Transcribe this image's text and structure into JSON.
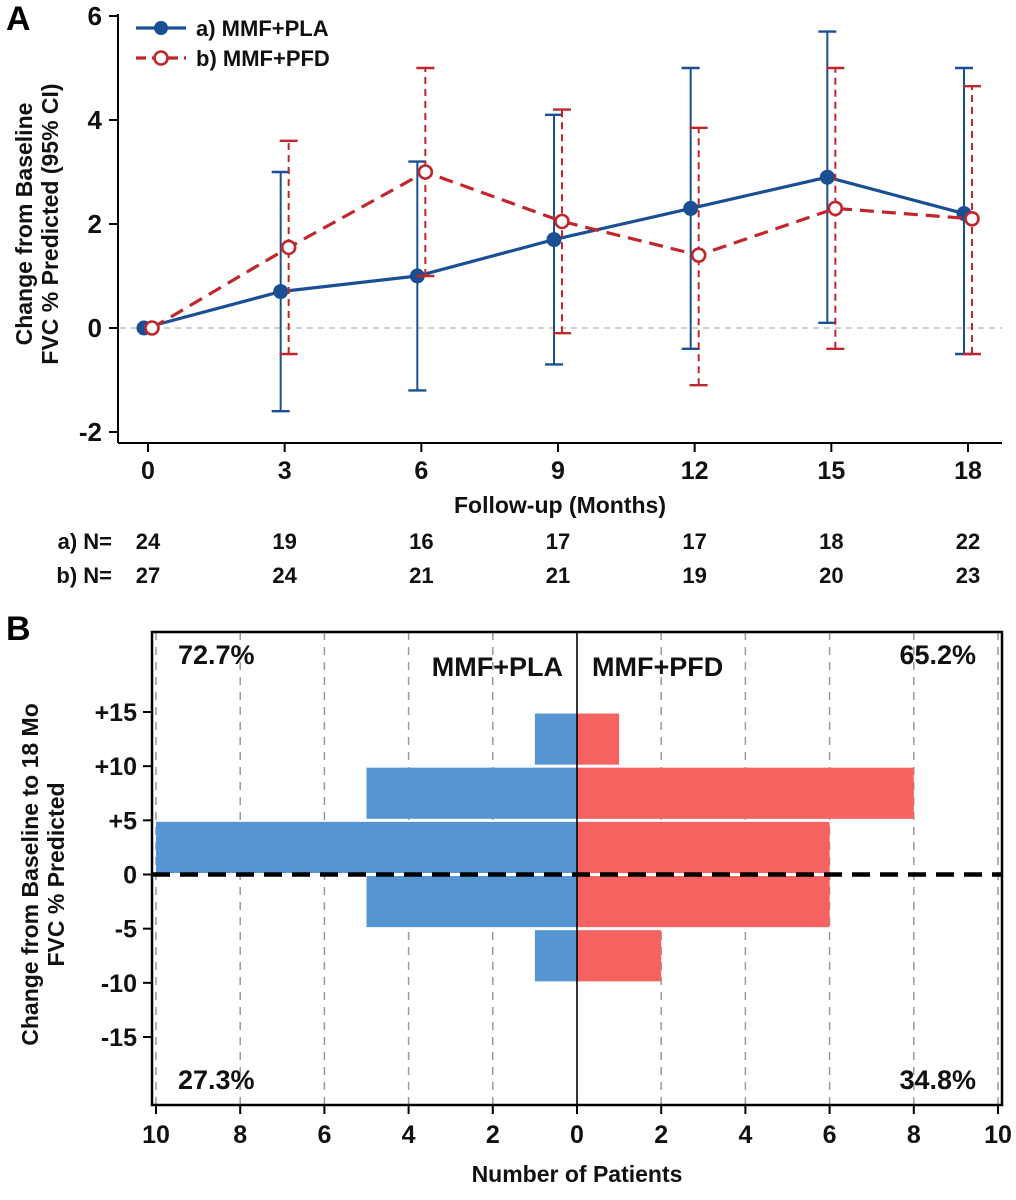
{
  "panel_a": {
    "label": "A",
    "legend": [
      {
        "label": "a) MMF+PLA"
      },
      {
        "label": "b) MMF+PFD"
      }
    ],
    "xlabel": "Follow-up (Months)",
    "ylabel_lines": [
      "Change from Baseline",
      "FVC % Predicted (95% CI)"
    ],
    "xtick_labels": [
      "0",
      "3",
      "6",
      "9",
      "12",
      "15",
      "18"
    ],
    "ytick_labels": [
      "6",
      "4",
      "2",
      "0",
      "-2"
    ],
    "n_rows": [
      {
        "label": "a) N=",
        "values": [
          "24",
          "19",
          "16",
          "17",
          "17",
          "18",
          "22"
        ]
      },
      {
        "label": "b) N=",
        "values": [
          "27",
          "24",
          "21",
          "21",
          "19",
          "20",
          "23"
        ]
      }
    ]
  },
  "panel_b": {
    "label": "B",
    "group_labels": [
      {
        "text": "MMF+PLA",
        "color": "#1b4f94"
      },
      {
        "text": "MMF+PFD",
        "color": "#c0272d"
      }
    ],
    "annotations": {
      "top_left": "72.7%",
      "top_right": "65.2%",
      "bottom_left": "27.3%",
      "bottom_right": "34.8%"
    },
    "xlabel": "Number of Patients",
    "ylabel_lines": [
      "Change from Baseline to 18 Mo",
      "FVC % Predicted"
    ],
    "ytick_labels": [
      "+15",
      "+10",
      "+5",
      "0",
      "-5",
      "-10",
      "-15"
    ],
    "xtick_labels": [
      "10",
      "8",
      "6",
      "4",
      "2",
      "0",
      "2",
      "4",
      "6",
      "8",
      "10"
    ]
  },
  "colors": {
    "mmf_pla_line": "#1b4f94",
    "mmf_pfd_line": "#c0272d",
    "mmf_pla_bar": "#5596d2",
    "mmf_pfd_bar": "#f4635f",
    "grid": "#9a9a9a",
    "zero_line_a": "#c2c2c2",
    "axis": "#000000"
  },
  "chart_data": [
    {
      "type": "line",
      "panel": "A",
      "title": "",
      "xlabel": "Follow-up (Months)",
      "ylabel": "Change from Baseline FVC % Predicted (95% CI)",
      "x": [
        0,
        3,
        6,
        9,
        12,
        15,
        18
      ],
      "xlim": [
        0,
        18
      ],
      "ylim": [
        -2,
        6
      ],
      "yticks": [
        6,
        4,
        2,
        0,
        -2
      ],
      "grid": false,
      "legend_position": "top-left",
      "zero_reference_line": "dashed-gray",
      "series": [
        {
          "name": "a) MMF+PLA",
          "line_style": "solid",
          "marker": "filled-circle",
          "color": "#1b4f94",
          "values": [
            0,
            0.7,
            1.0,
            1.7,
            2.3,
            2.9,
            2.2
          ],
          "ci_low": [
            0,
            -1.6,
            -1.2,
            -0.7,
            -0.4,
            0.1,
            -0.5
          ],
          "ci_high": [
            0,
            3.0,
            3.2,
            4.1,
            5.0,
            5.7,
            5.0
          ],
          "n": [
            24,
            19,
            16,
            17,
            17,
            18,
            22
          ]
        },
        {
          "name": "b) MMF+PFD",
          "line_style": "dashed",
          "marker": "open-circle",
          "color": "#c0272d",
          "values": [
            0,
            1.55,
            3.0,
            2.05,
            1.4,
            2.3,
            2.1
          ],
          "ci_low": [
            0,
            -0.5,
            1.0,
            -0.1,
            -1.1,
            -0.4,
            -0.5
          ],
          "ci_high": [
            0,
            3.6,
            5.0,
            4.2,
            3.85,
            5.0,
            4.65
          ],
          "n": [
            27,
            24,
            21,
            21,
            19,
            20,
            23
          ]
        }
      ]
    },
    {
      "type": "bar",
      "panel": "B",
      "orientation": "horizontal-diverging",
      "xlabel": "Number of Patients",
      "ylabel": "Change from Baseline to 18 Mo FVC % Predicted",
      "xlim": [
        -10,
        10
      ],
      "xticks": [
        -10,
        -8,
        -6,
        -4,
        -2,
        0,
        2,
        4,
        6,
        8,
        10
      ],
      "yticks": [
        15,
        10,
        5,
        0,
        -5,
        -10,
        -15
      ],
      "bin_edges": [
        15,
        10,
        5,
        0,
        -5,
        -10
      ],
      "zero_line": "dashed-black",
      "grid": "vertical-dashed",
      "series": [
        {
          "name": "MMF+PLA",
          "side": "left",
          "color": "#5596d2",
          "values": [
            1,
            5,
            10,
            5,
            1
          ],
          "pct_above_zero": "72.7%",
          "pct_below_zero": "27.3%"
        },
        {
          "name": "MMF+PFD",
          "side": "right",
          "color": "#f4635f",
          "values": [
            1,
            8,
            6,
            6,
            2
          ],
          "pct_above_zero": "65.2%",
          "pct_below_zero": "34.8%"
        }
      ]
    }
  ]
}
